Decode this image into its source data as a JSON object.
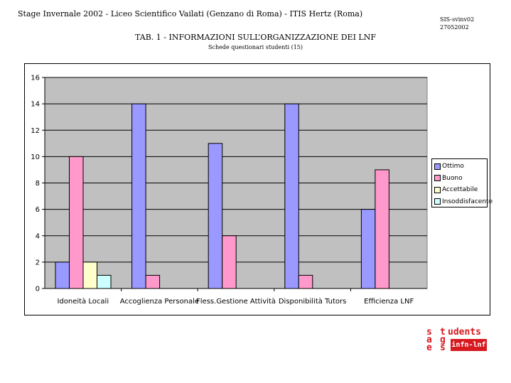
{
  "header": {
    "left_text": "Stage Invernale  2002 - Liceo Scientifico Vailati   (Genzano di Roma) - ITIS Hertz (Roma)",
    "code": "SIS-svinv02",
    "date": "27052002"
  },
  "colors": {
    "plot_background": "#c0c0c0",
    "ottimo": "#9999ff",
    "buono": "#ff99cc",
    "accettabile": "#ffffcc",
    "insoddisfacente": "#ccffff",
    "logo_red": "#d71920"
  },
  "chart_data": {
    "type": "bar",
    "title": "TAB. 1 - INFORMAZIONI SULL’ORGANIZZAZIONE DEI LNF",
    "subtitle": "Schede questionari studenti  (15)",
    "xlabel": "",
    "ylabel": "",
    "ylim": [
      0,
      16
    ],
    "yticks": [
      0,
      2,
      4,
      6,
      8,
      10,
      12,
      14,
      16
    ],
    "grid": true,
    "legend_position": "right",
    "categories": [
      "Idoneità Locali",
      "Accoglienza Personale",
      "Fless.Gestione Attività",
      "Disponibilità Tutors",
      "Efficienza LNF"
    ],
    "series": [
      {
        "name": "Ottimo",
        "color": "#9999ff",
        "values": [
          2,
          14,
          11,
          14,
          6
        ]
      },
      {
        "name": "Buono",
        "color": "#ff99cc",
        "values": [
          10,
          1,
          4,
          1,
          9
        ]
      },
      {
        "name": "Accettabile",
        "color": "#ffffcc",
        "values": [
          2,
          0,
          0,
          0,
          0
        ]
      },
      {
        "name": "Insoddisfacente",
        "color": "#ccffff",
        "values": [
          1,
          0,
          0,
          0,
          0
        ]
      }
    ]
  },
  "logo": {
    "col1": [
      "s",
      "a",
      "e"
    ],
    "col2": [
      "t",
      "g",
      "s"
    ],
    "word": "udents",
    "badge": "infn-lnf"
  }
}
